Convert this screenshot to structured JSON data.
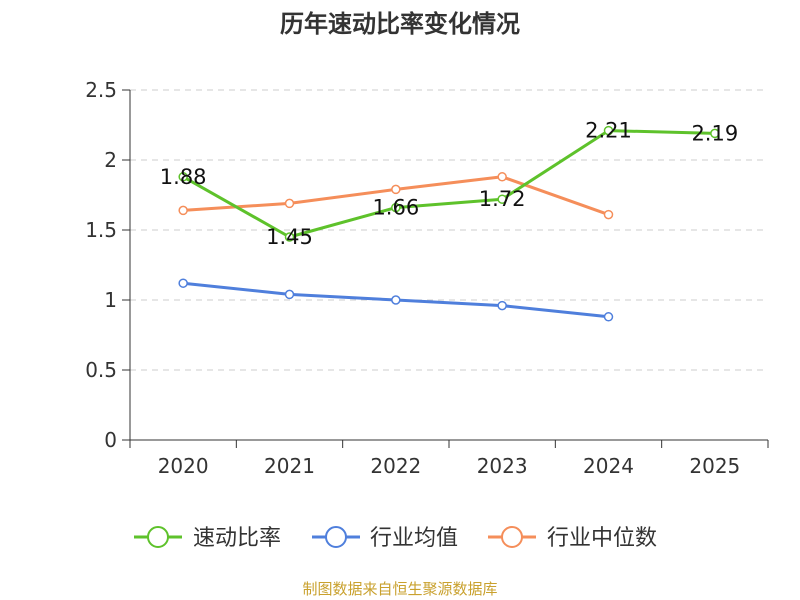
{
  "chart_data": {
    "type": "line",
    "title": "历年速动比率变化情况",
    "categories": [
      "2020",
      "2021",
      "2022",
      "2023",
      "2024",
      "2025"
    ],
    "ylim": [
      0,
      2.5
    ],
    "yticks": [
      "0",
      "0.5",
      "1",
      "1.5",
      "2",
      "2.5"
    ],
    "grid": true,
    "legend_position": "bottom",
    "series": [
      {
        "name": "速动比率",
        "color": "#5ec22b",
        "values": [
          1.88,
          1.45,
          1.66,
          1.72,
          2.21,
          2.19
        ],
        "labels": [
          "1.88",
          "1.45",
          "1.66",
          "1.72",
          "2.21",
          "2.19"
        ]
      },
      {
        "name": "行业均值",
        "color": "#4f7fdc",
        "values": [
          1.12,
          1.04,
          1.0,
          0.96,
          0.88,
          null
        ]
      },
      {
        "name": "行业中位数",
        "color": "#f58e5a",
        "values": [
          1.64,
          1.69,
          1.79,
          1.88,
          1.61,
          null
        ]
      }
    ],
    "source": "制图数据来自恒生聚源数据库",
    "source_color": "#c9a12e"
  }
}
